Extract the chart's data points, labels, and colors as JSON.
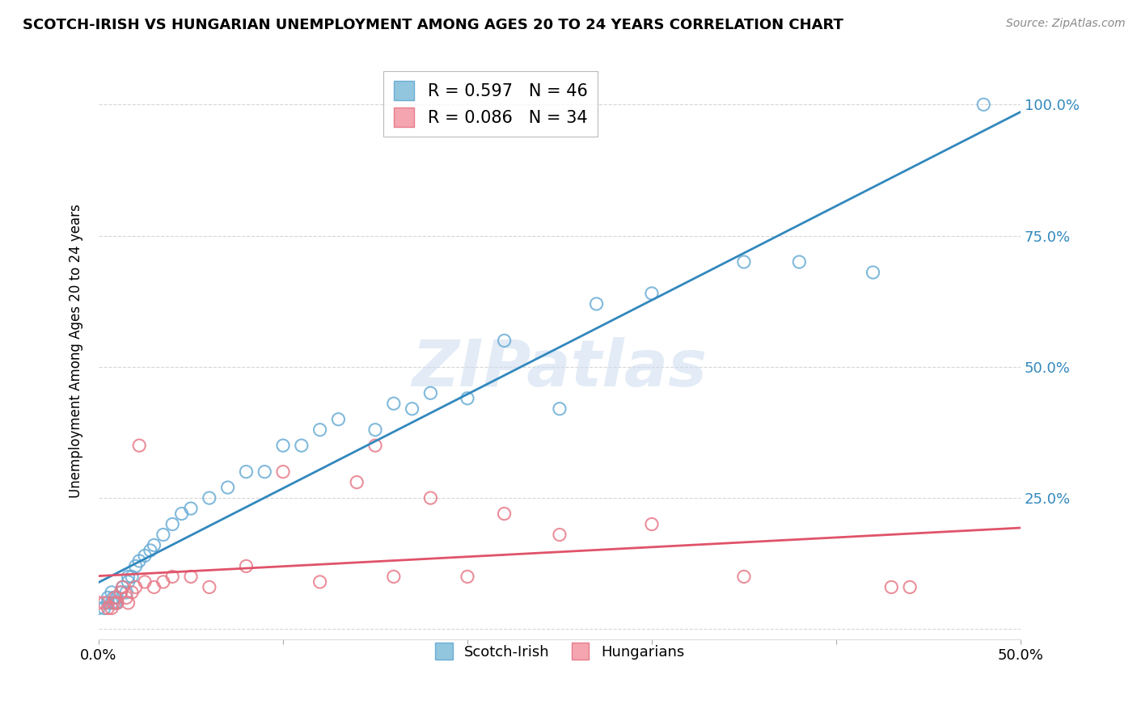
{
  "title": "SCOTCH-IRISH VS HUNGARIAN UNEMPLOYMENT AMONG AGES 20 TO 24 YEARS CORRELATION CHART",
  "source": "Source: ZipAtlas.com",
  "ylabel_label": "Unemployment Among Ages 20 to 24 years",
  "xlim": [
    0.0,
    0.5
  ],
  "ylim": [
    -0.02,
    1.08
  ],
  "scotch_irish_R": 0.597,
  "scotch_irish_N": 46,
  "hungarian_R": 0.086,
  "hungarian_N": 34,
  "scotch_irish_color": "#92c5de",
  "hungarian_color": "#f4a5b0",
  "scotch_irish_edge_color": "#6baed6",
  "hungarian_edge_color": "#e87c8a",
  "scotch_irish_line_color": "#3288bd",
  "hungarian_line_color": "#e0536a",
  "watermark": "ZIPatlas",
  "background_color": "#ffffff",
  "scotch_irish_x": [
    0.0,
    0.003,
    0.005,
    0.005,
    0.007,
    0.007,
    0.008,
    0.009,
    0.01,
    0.01,
    0.012,
    0.013,
    0.015,
    0.016,
    0.016,
    0.018,
    0.02,
    0.022,
    0.025,
    0.028,
    0.03,
    0.035,
    0.04,
    0.045,
    0.05,
    0.06,
    0.07,
    0.08,
    0.09,
    0.1,
    0.11,
    0.12,
    0.13,
    0.15,
    0.16,
    0.17,
    0.18,
    0.2,
    0.22,
    0.25,
    0.27,
    0.3,
    0.35,
    0.38,
    0.42,
    0.48
  ],
  "scotch_irish_y": [
    0.04,
    0.04,
    0.05,
    0.06,
    0.05,
    0.07,
    0.06,
    0.05,
    0.05,
    0.06,
    0.07,
    0.08,
    0.07,
    0.09,
    0.1,
    0.1,
    0.12,
    0.13,
    0.14,
    0.15,
    0.16,
    0.18,
    0.2,
    0.22,
    0.23,
    0.25,
    0.27,
    0.3,
    0.3,
    0.35,
    0.35,
    0.38,
    0.4,
    0.38,
    0.43,
    0.42,
    0.45,
    0.44,
    0.55,
    0.42,
    0.62,
    0.64,
    0.7,
    0.7,
    0.68,
    1.0
  ],
  "hungarian_x": [
    0.0,
    0.003,
    0.005,
    0.007,
    0.008,
    0.009,
    0.01,
    0.012,
    0.013,
    0.015,
    0.016,
    0.018,
    0.02,
    0.022,
    0.025,
    0.03,
    0.035,
    0.04,
    0.05,
    0.06,
    0.08,
    0.1,
    0.12,
    0.14,
    0.15,
    0.16,
    0.18,
    0.2,
    0.22,
    0.25,
    0.3,
    0.35,
    0.43,
    0.44
  ],
  "hungarian_y": [
    0.05,
    0.05,
    0.04,
    0.04,
    0.05,
    0.06,
    0.05,
    0.07,
    0.08,
    0.06,
    0.05,
    0.07,
    0.08,
    0.35,
    0.09,
    0.08,
    0.09,
    0.1,
    0.1,
    0.08,
    0.12,
    0.3,
    0.09,
    0.28,
    0.35,
    0.1,
    0.25,
    0.1,
    0.22,
    0.18,
    0.2,
    0.1,
    0.08,
    0.08
  ]
}
